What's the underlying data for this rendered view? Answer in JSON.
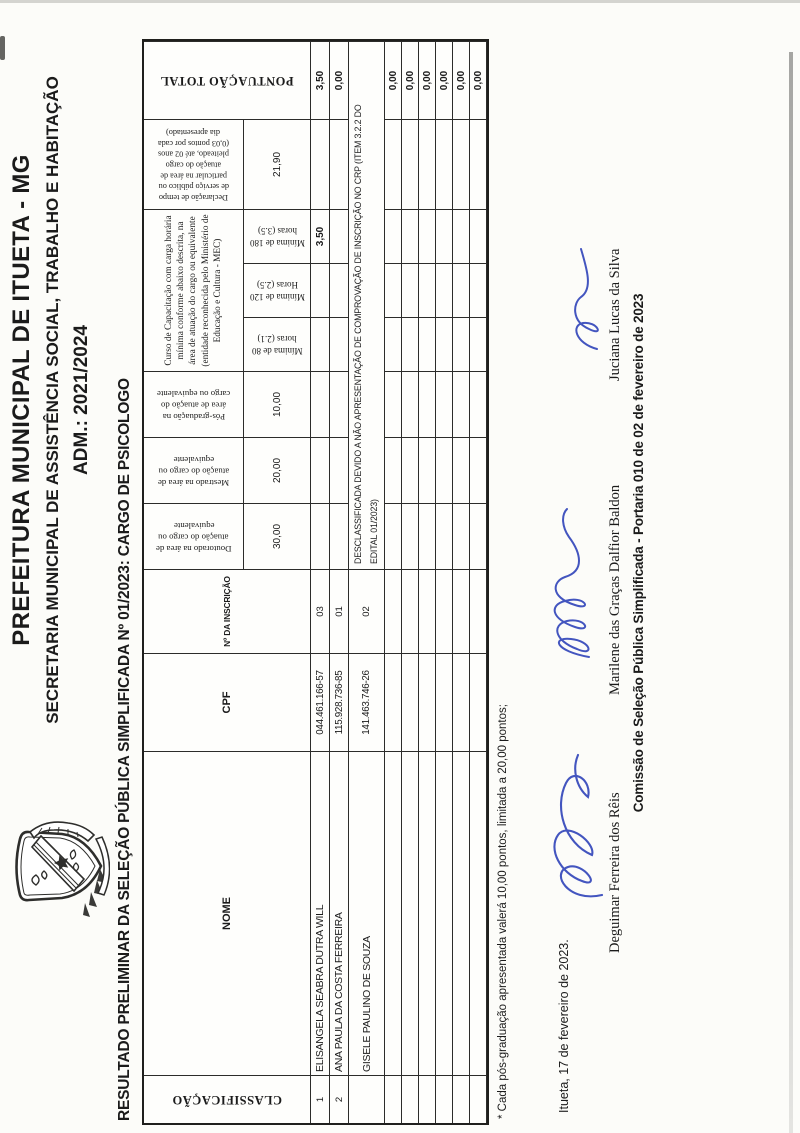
{
  "document": {
    "orientation_note": "landscape sheet scanned rotated 90 degrees counter-clockwise",
    "ink_color": "#2a3eb8",
    "line_color": "#2c2c2a"
  },
  "header": {
    "logo_icon": "coat-of-arms",
    "title1": "PREFEITURA MUNICIPAL DE ITUETA - MG",
    "title2": "SECRETARIA MUNICIPAL DE ASSISTÊNCIA SOCIAL, TRABALHO E HABITAÇÃO",
    "title3": "ADM.: 2021/2024"
  },
  "subject_line": "RESULTADO PRELIMINAR DA SELEÇÃO PÚBLICA SIMPLIFICADA Nº 01/2023: CARGO DE PSICOLOGO",
  "table": {
    "course_group_label": "Curso de Capacitação com carga horária\nmínima conforme abaixo descrita, na\nárea de atuação do cargo ou equivalente\n(entidade reconhecida pelo Ministério de\nEducação e Cultura - MEC)",
    "columns": [
      {
        "key": "class",
        "label": "CLASSIFICAÇÃO"
      },
      {
        "key": "nome",
        "label": "NOME"
      },
      {
        "key": "cpf",
        "label": "CPF"
      },
      {
        "key": "insc",
        "label": "Nº DA INSCRIÇÃO"
      },
      {
        "key": "dout",
        "label": "Doutorado na área de\natuação do cargo ou\nequivalente",
        "max_points": "30,00"
      },
      {
        "key": "mest",
        "label": "Mestrado na área de\natuação do cargo ou\nequivalente",
        "max_points": "20,00"
      },
      {
        "key": "pos",
        "label": "Pós-graduação na\nárea de atuação do\ncargo ou equivalente",
        "max_points": "10,00"
      },
      {
        "key": "h80",
        "label": "Mínima de 80\nhoras (2.1)"
      },
      {
        "key": "h120",
        "label": "Mínima de 120\nHoras (2.5)"
      },
      {
        "key": "h180",
        "label": "Mínima de 180\nhoras (3.5)"
      },
      {
        "key": "decl",
        "label": "Declaração de tempo\nde serviço público ou\nparticular na área de\natuação do cargo\npleiteado, até 02 anos\n(0,03 pontos por cada\ndia apresentado)",
        "max_points": "21,90"
      },
      {
        "key": "total",
        "label": "PONTUAÇÃO TOTAL"
      }
    ],
    "rows": [
      {
        "class": "1",
        "nome": "ELISANGELA SEABRA DUTRA WILL",
        "cpf": "044.461.166-57",
        "insc": "03",
        "dout": "",
        "mest": "",
        "pos": "",
        "h80": "",
        "h120": "",
        "h180": "3,50",
        "decl": "",
        "total": "3,50"
      },
      {
        "class": "2",
        "nome": "ANA PAULA DA COSTA FERREIRA",
        "cpf": "115.928.736-85",
        "insc": "01",
        "dout": "",
        "mest": "",
        "pos": "",
        "h80": "",
        "h120": "",
        "h180": "",
        "decl": "",
        "total": "0,00"
      },
      {
        "class": "",
        "nome": "GISELE PAULINO DE SOUZA",
        "cpf": "141.463.746-26",
        "insc": "02",
        "merged": "DESCLASSIFICADA DEVIDO A NÃO APRESENTAÇÃO DE COMPROVAÇÃO DE INSCRIÇÃO NO CRP (ITEM 3.2.2 DO\nEDITAL 01/2023)"
      },
      {
        "class": "",
        "nome": "",
        "cpf": "",
        "insc": "",
        "dout": "",
        "mest": "",
        "pos": "",
        "h80": "",
        "h120": "",
        "h180": "",
        "decl": "",
        "total": "0,00"
      },
      {
        "class": "",
        "nome": "",
        "cpf": "",
        "insc": "",
        "dout": "",
        "mest": "",
        "pos": "",
        "h80": "",
        "h120": "",
        "h180": "",
        "decl": "",
        "total": "0,00"
      },
      {
        "class": "",
        "nome": "",
        "cpf": "",
        "insc": "",
        "dout": "",
        "mest": "",
        "pos": "",
        "h80": "",
        "h120": "",
        "h180": "",
        "decl": "",
        "total": "0,00"
      },
      {
        "class": "",
        "nome": "",
        "cpf": "",
        "insc": "",
        "dout": "",
        "mest": "",
        "pos": "",
        "h80": "",
        "h120": "",
        "h180": "",
        "decl": "",
        "total": "0,00"
      },
      {
        "class": "",
        "nome": "",
        "cpf": "",
        "insc": "",
        "dout": "",
        "mest": "",
        "pos": "",
        "h80": "",
        "h120": "",
        "h180": "",
        "decl": "",
        "total": "0,00"
      },
      {
        "class": "",
        "nome": "",
        "cpf": "",
        "insc": "",
        "dout": "",
        "mest": "",
        "pos": "",
        "h80": "",
        "h120": "",
        "h180": "",
        "decl": "",
        "total": "0,00"
      }
    ]
  },
  "footnote": "* Cada pós-graduação apresentada valerá 10,00 pontos, limitada a 20,00 pontos;",
  "dateline": "Itueta, 17 de fevereiro de 2023.",
  "signatures": [
    {
      "name": "Deguimar Ferreira dos Rêis",
      "ink_signature": true
    },
    {
      "name": "Marilene das Graças Dalfior Baldon",
      "ink_signature": true
    },
    {
      "name": "Juciana Lucas da Silva",
      "ink_signature": true
    }
  ],
  "committee_line": "Comissão de Seleção Pública Simplificada - Portaria 010 de 02 de fevereiro de 2023"
}
